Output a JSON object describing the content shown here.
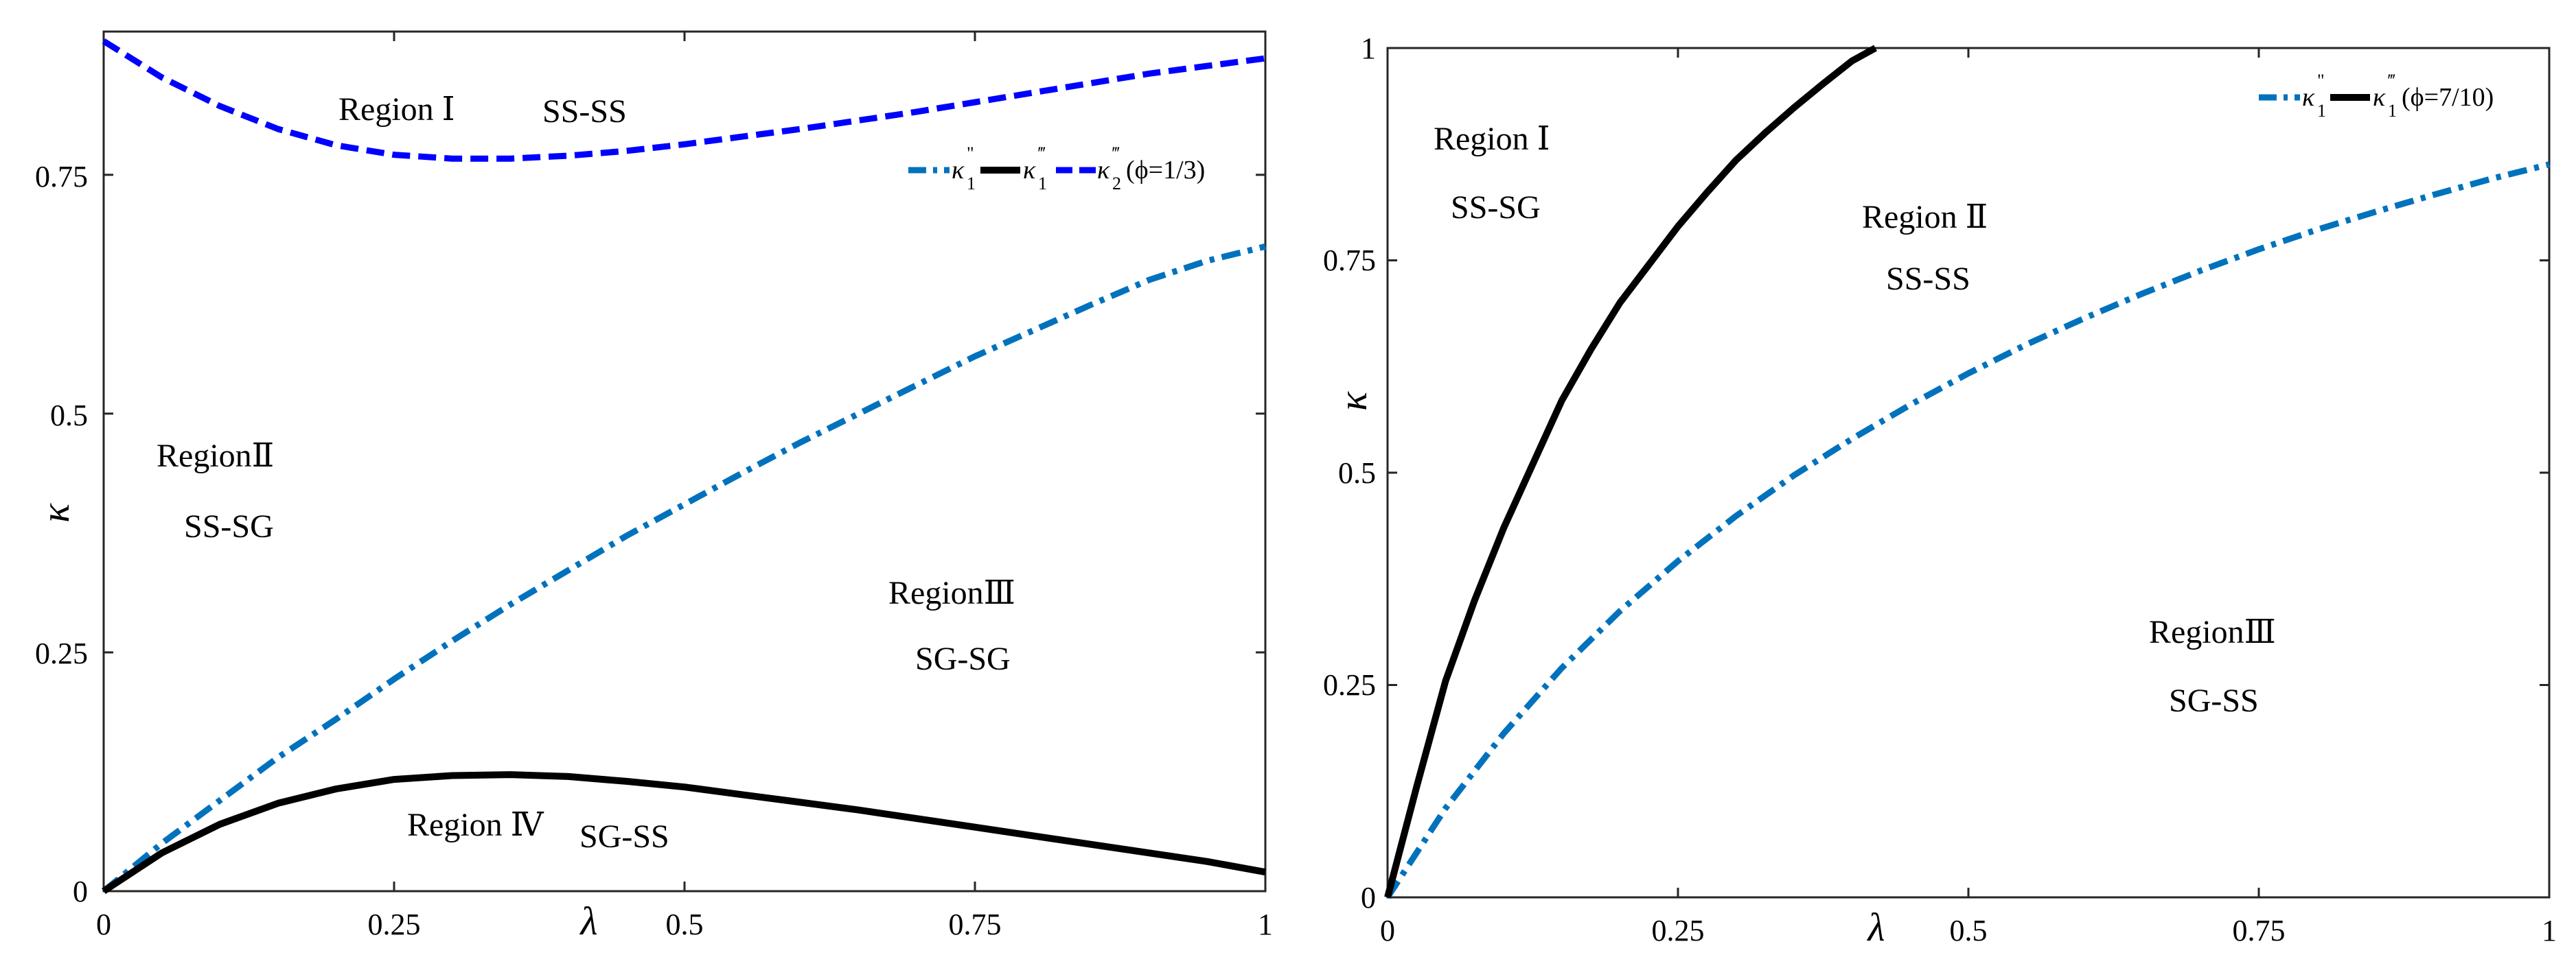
{
  "chart_data": [
    {
      "type": "line",
      "xlabel": "λ",
      "ylabel": "κ",
      "xlim": [
        0,
        1
      ],
      "ylim": [
        0,
        0.9
      ],
      "xticks": [
        "0",
        "0.25",
        "0.5",
        "0.75",
        "1"
      ],
      "yticks": [
        "0",
        "0.25",
        "0.5",
        "0.75"
      ],
      "series": [
        {
          "name": "kappa1_double_prime",
          "legend": "κ″₁",
          "style": "dashdot",
          "color": "#0072BD",
          "x": [
            0,
            0.05,
            0.1,
            0.15,
            0.2,
            0.25,
            0.3,
            0.35,
            0.4,
            0.45,
            0.5,
            0.55,
            0.6,
            0.65,
            0.7,
            0.75,
            0.8,
            0.85,
            0.9,
            0.95,
            1
          ],
          "y": [
            0,
            0.05,
            0.095,
            0.14,
            0.18,
            0.222,
            0.262,
            0.3,
            0.336,
            0.372,
            0.405,
            0.438,
            0.47,
            0.5,
            0.53,
            0.56,
            0.587,
            0.614,
            0.64,
            0.66,
            0.675
          ]
        },
        {
          "name": "kappa1_triple_prime",
          "legend": "κ‴₁",
          "style": "solid",
          "color": "#000000",
          "x": [
            0,
            0.05,
            0.1,
            0.15,
            0.2,
            0.25,
            0.3,
            0.35,
            0.4,
            0.45,
            0.5,
            0.55,
            0.6,
            0.65,
            0.7,
            0.75,
            0.8,
            0.85,
            0.9,
            0.95,
            1
          ],
          "y": [
            0,
            0.04,
            0.07,
            0.092,
            0.107,
            0.117,
            0.121,
            0.122,
            0.12,
            0.115,
            0.109,
            0.101,
            0.093,
            0.085,
            0.076,
            0.067,
            0.058,
            0.049,
            0.04,
            0.031,
            0.02
          ]
        },
        {
          "name": "kappa2_triple_prime",
          "legend": "κ‴₂(ϕ=1/3)",
          "style": "dashed",
          "color": "#0000FF",
          "x": [
            0,
            0.05,
            0.1,
            0.15,
            0.2,
            0.25,
            0.3,
            0.35,
            0.4,
            0.45,
            0.5,
            0.55,
            0.6,
            0.65,
            0.7,
            0.75,
            0.8,
            0.85,
            0.9,
            0.95,
            1
          ],
          "y": [
            0.89,
            0.852,
            0.822,
            0.798,
            0.781,
            0.771,
            0.767,
            0.767,
            0.77,
            0.775,
            0.782,
            0.79,
            0.798,
            0.807,
            0.816,
            0.826,
            0.836,
            0.846,
            0.856,
            0.864,
            0.872
          ]
        }
      ],
      "legend_position": "top-right",
      "legend": {
        "k1pp": "κ",
        "k1pp_sup": "\"",
        "k1pp_sub": "1",
        "k1ppp": "κ",
        "k1ppp_sup": "‴",
        "k1ppp_sub": "1",
        "k2ppp": "κ",
        "k2ppp_sup": "‴",
        "k2ppp_sub": "2",
        "phi": "(ϕ=1/3)"
      },
      "annotations": {
        "r1_label": "Region Ⅰ",
        "r1_type": "SS-SS",
        "r2_label": "RegionⅡ",
        "r2_type": "SS-SG",
        "r3_label": "RegionⅢ",
        "r3_type": "SG-SG",
        "r4_label": "Region Ⅳ",
        "r4_type": "SG-SS"
      }
    },
    {
      "type": "line",
      "xlabel": "λ",
      "ylabel": "κ",
      "xlim": [
        0,
        1
      ],
      "ylim": [
        0,
        1
      ],
      "xticks": [
        "0",
        "0.25",
        "0.5",
        "0.75",
        "1"
      ],
      "yticks": [
        "0",
        "0.25",
        "0.5",
        "0.75",
        "1"
      ],
      "series": [
        {
          "name": "kappa1_double_prime",
          "legend": "κ″₁",
          "style": "dashdot",
          "color": "#0072BD",
          "x": [
            0,
            0.05,
            0.1,
            0.15,
            0.2,
            0.25,
            0.3,
            0.35,
            0.4,
            0.45,
            0.5,
            0.55,
            0.6,
            0.65,
            0.7,
            0.75,
            0.8,
            0.85,
            0.9,
            0.95,
            1
          ],
          "y": [
            0,
            0.105,
            0.193,
            0.27,
            0.337,
            0.396,
            0.449,
            0.497,
            0.54,
            0.58,
            0.617,
            0.651,
            0.682,
            0.711,
            0.738,
            0.763,
            0.786,
            0.807,
            0.827,
            0.846,
            0.863
          ]
        },
        {
          "name": "kappa1_triple_prime",
          "legend": "κ‴₁(ϕ=7/10)",
          "style": "solid",
          "color": "#000000",
          "x": [
            0,
            0.025,
            0.05,
            0.075,
            0.1,
            0.125,
            0.15,
            0.175,
            0.2,
            0.225,
            0.25,
            0.275,
            0.3,
            0.325,
            0.35,
            0.375,
            0.4,
            0.42
          ],
          "y": [
            0,
            0.13,
            0.255,
            0.35,
            0.435,
            0.51,
            0.585,
            0.645,
            0.7,
            0.745,
            0.79,
            0.83,
            0.868,
            0.9,
            0.93,
            0.958,
            0.985,
            1.0
          ]
        }
      ],
      "legend_position": "top-right",
      "legend": {
        "k1pp": "κ",
        "k1pp_sup": "\"",
        "k1pp_sub": "1",
        "k1ppp": "κ",
        "k1ppp_sup": "‴",
        "k1ppp_sub": "1",
        "phi": "(ϕ=7/10)"
      },
      "annotations": {
        "r1_label": "Region Ⅰ",
        "r1_type": "SS-SG",
        "r2_label": "Region Ⅱ",
        "r2_type": "SS-SS",
        "r3_label": "RegionⅢ",
        "r3_type": "SG-SS"
      }
    }
  ]
}
